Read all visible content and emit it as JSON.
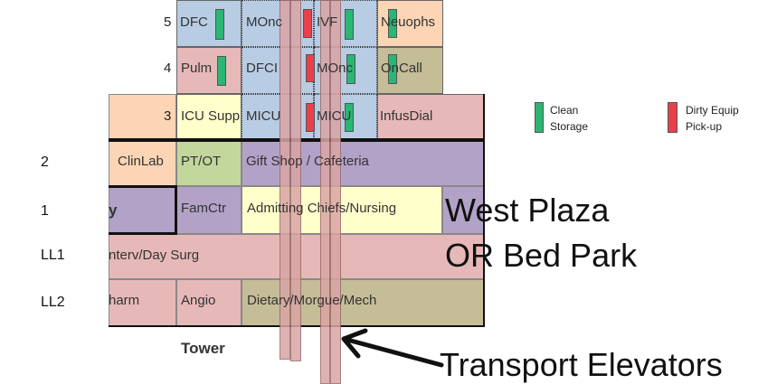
{
  "colors": {
    "blue": "#b8cce4",
    "pink": "#e6b9b8",
    "peach": "#fcd5b5",
    "tan": "#c4bd97",
    "yellow": "#ffffcc",
    "purple": "#b3a2c7",
    "green": "#c3d69b",
    "clean": "#2bb673",
    "dirty": "#e8414b"
  },
  "floors": {
    "f5": "5",
    "f4": "4",
    "f3": "3",
    "f2": "2",
    "f1": "1",
    "ll1": "LL1",
    "ll2": "LL2"
  },
  "rooms": {
    "r5_dfc": "DFC",
    "r5_monc": "MOnc",
    "r5_ivf": "IVF",
    "r5_neuophs": "Neuophs",
    "r4_pulm": "Pulm",
    "r4_dfci": "DFCI",
    "r4_monc": "MOnc",
    "r4_oncall": "OnCall",
    "r3_icu_supp": "ICU Supp",
    "r3_micu_a": "MICU",
    "r3_micu_b": "MICU",
    "r3_infusdial": "InfusDial",
    "r2_clinlab": "ClinLab",
    "r2_ptot": "PT/OT",
    "r2_gift": "Gift Shop / Cafeteria",
    "r1_y": "y",
    "r1_famctr": "FamCtr",
    "r1_admitting": "Admitting Chiefs/Nursing",
    "ll1_interv": "nterv/Day Surg",
    "ll2_pharm": "harm",
    "ll2_angio": "Angio",
    "ll2_dietary": "Dietary/Morgue/Mech"
  },
  "building_label": "Tower",
  "west_plaza": "West Plaza",
  "or_bed_park": "OR Bed Park",
  "transport_label": "Transport Elevators",
  "legend": {
    "clean_line1": "Clean",
    "clean_line2": "Storage",
    "dirty_line1": "Dirty Equip",
    "dirty_line2": "Pick-up"
  }
}
